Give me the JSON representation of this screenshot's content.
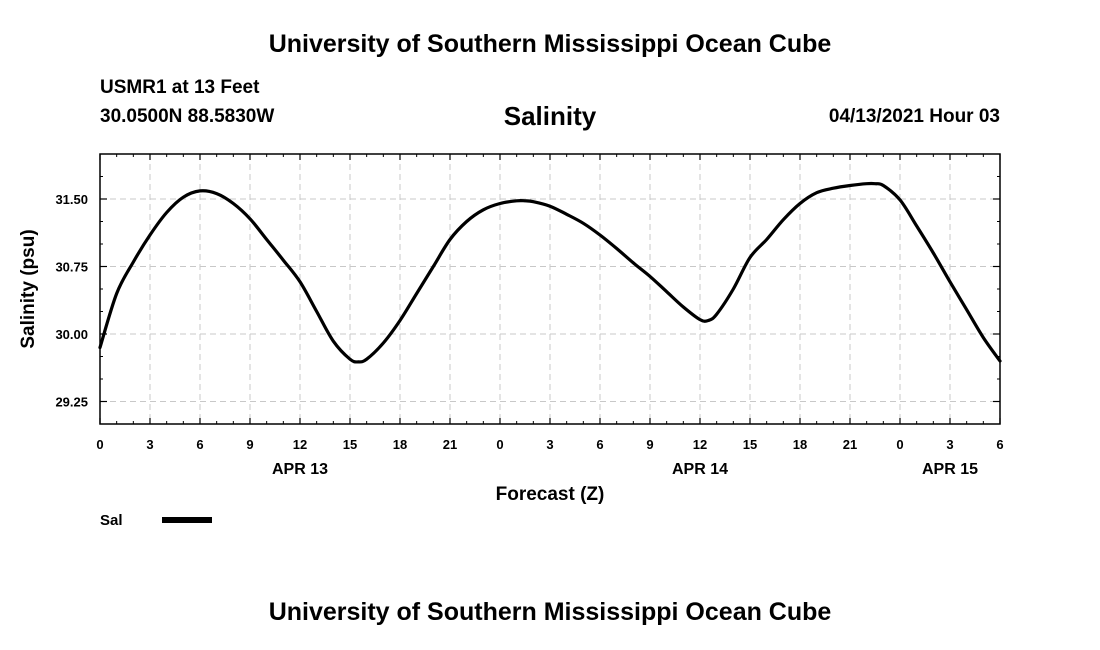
{
  "header": {
    "organization": "University of Southern Mississippi Ocean Cube",
    "station": "USMR1 at 13 Feet",
    "coordinates": "30.0500N  88.5830W",
    "datetime": "04/13/2021 Hour 03"
  },
  "footer": {
    "organization": "University of Southern Mississippi Ocean Cube"
  },
  "chart_data": {
    "type": "line",
    "title": "Salinity",
    "xlabel": "Forecast (Z)",
    "ylabel": "Salinity (psu)",
    "x_unit": "hours since 2021-04-13 00Z",
    "xlim": [
      0,
      54
    ],
    "ylim": [
      29.0,
      32.0
    ],
    "y_ticks": [
      "29.25",
      "30.00",
      "30.75",
      "31.50"
    ],
    "y_tick_values": [
      29.25,
      30.0,
      30.75,
      31.5
    ],
    "x_ticks": [
      {
        "x": 0,
        "label": "0"
      },
      {
        "x": 3,
        "label": "3"
      },
      {
        "x": 6,
        "label": "6"
      },
      {
        "x": 9,
        "label": "9"
      },
      {
        "x": 12,
        "label": "12"
      },
      {
        "x": 15,
        "label": "15"
      },
      {
        "x": 18,
        "label": "18"
      },
      {
        "x": 21,
        "label": "21"
      },
      {
        "x": 24,
        "label": "0"
      },
      {
        "x": 27,
        "label": "3"
      },
      {
        "x": 30,
        "label": "6"
      },
      {
        "x": 33,
        "label": "9"
      },
      {
        "x": 36,
        "label": "12"
      },
      {
        "x": 39,
        "label": "15"
      },
      {
        "x": 42,
        "label": "18"
      },
      {
        "x": 45,
        "label": "21"
      },
      {
        "x": 48,
        "label": "0"
      },
      {
        "x": 51,
        "label": "3"
      },
      {
        "x": 54,
        "label": "6"
      }
    ],
    "date_labels": [
      {
        "x": 12,
        "label": "APR 13"
      },
      {
        "x": 36,
        "label": "APR 14"
      },
      {
        "x": 51,
        "label": "APR 15"
      }
    ],
    "grid": true,
    "legend": "bottom-left",
    "series": [
      {
        "name": "Sal",
        "color": "#000000",
        "x": [
          0,
          1,
          2,
          3,
          4,
          5,
          6,
          7,
          8,
          9,
          10,
          11,
          12,
          13,
          14,
          15,
          15.5,
          16,
          17,
          18,
          19,
          20,
          21,
          22,
          23,
          24,
          25,
          25.5,
          26,
          27,
          28,
          29,
          30,
          31,
          32,
          33,
          34,
          35,
          36,
          36.5,
          37,
          38,
          39,
          40,
          41,
          42,
          43,
          44,
          45,
          46,
          46.5,
          47,
          48,
          49,
          50,
          51,
          52,
          53,
          54
        ],
        "y": [
          29.85,
          30.45,
          30.8,
          31.1,
          31.35,
          31.52,
          31.59,
          31.56,
          31.45,
          31.28,
          31.05,
          30.82,
          30.58,
          30.25,
          29.92,
          29.72,
          29.69,
          29.72,
          29.9,
          30.15,
          30.45,
          30.75,
          31.05,
          31.25,
          31.38,
          31.45,
          31.48,
          31.48,
          31.47,
          31.42,
          31.33,
          31.23,
          31.1,
          30.95,
          30.79,
          30.64,
          30.47,
          30.3,
          30.16,
          30.15,
          30.22,
          30.5,
          30.85,
          31.05,
          31.27,
          31.45,
          31.57,
          31.62,
          31.65,
          31.67,
          31.67,
          31.65,
          31.49,
          31.2,
          30.9,
          30.58,
          30.27,
          29.96,
          29.7
        ]
      }
    ]
  }
}
